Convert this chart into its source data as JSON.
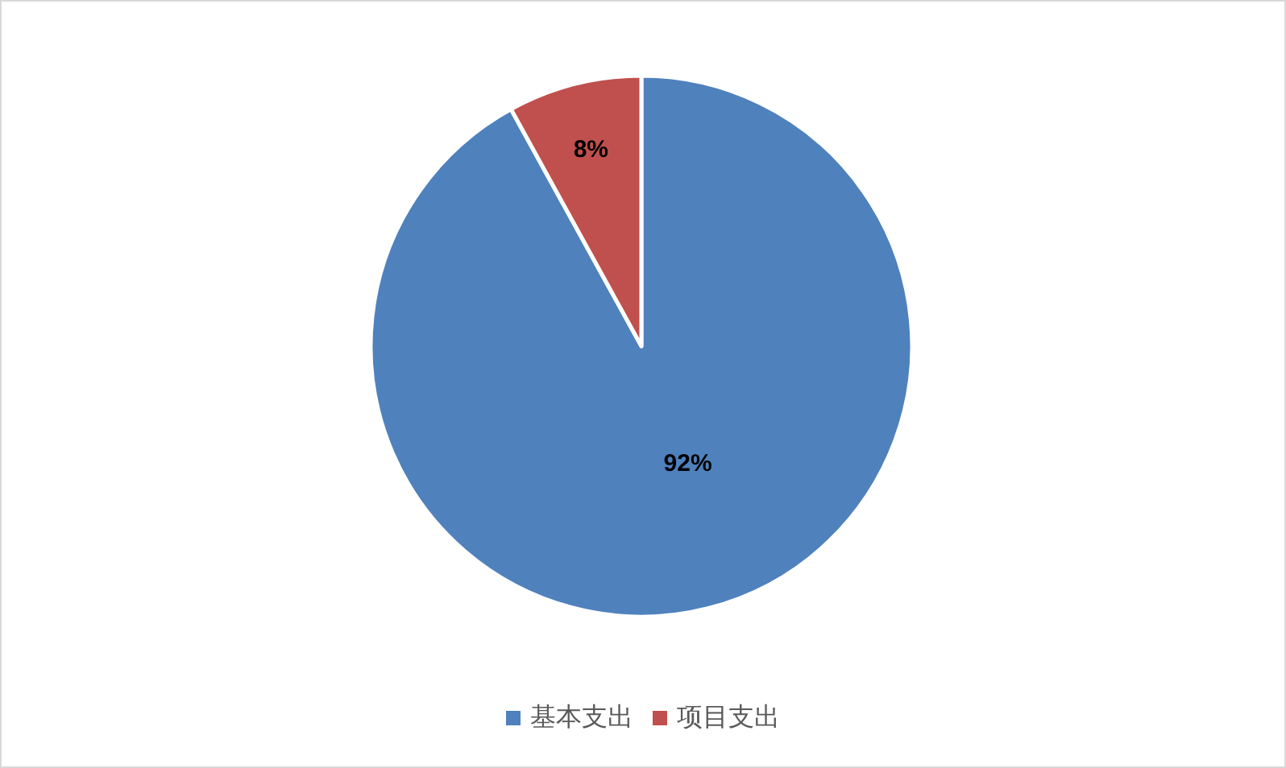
{
  "chart_data": {
    "type": "pie",
    "categories": [
      "基本支出",
      "项目支出"
    ],
    "values": [
      92,
      8
    ],
    "value_labels": [
      "92%",
      "8%"
    ],
    "colors": [
      "#4f81bd",
      "#c0504d"
    ],
    "legend": "bottom"
  }
}
